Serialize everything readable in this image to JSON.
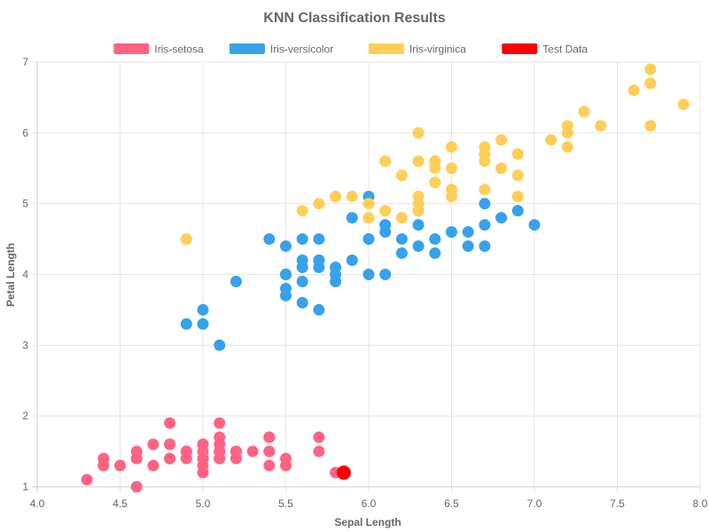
{
  "chart_data": {
    "type": "scatter",
    "title": "KNN Classification Results",
    "xlabel": "Sepal Length",
    "ylabel": "Petal Length",
    "xlim": [
      4.0,
      8.0
    ],
    "ylim": [
      1,
      7
    ],
    "xticks": [
      "4.0",
      "4.5",
      "5.0",
      "5.5",
      "6.0",
      "6.5",
      "7.0",
      "7.5",
      "8.0"
    ],
    "yticks": [
      "1",
      "2",
      "3",
      "4",
      "5",
      "6",
      "7"
    ],
    "grid": true,
    "legend_position": "top-center",
    "series": [
      {
        "name": "Iris-setosa",
        "color": "#ff6384",
        "points": [
          [
            5.1,
            1.4
          ],
          [
            4.9,
            1.4
          ],
          [
            4.7,
            1.3
          ],
          [
            4.6,
            1.5
          ],
          [
            5.0,
            1.4
          ],
          [
            5.4,
            1.7
          ],
          [
            4.6,
            1.4
          ],
          [
            5.0,
            1.5
          ],
          [
            4.4,
            1.4
          ],
          [
            4.9,
            1.5
          ],
          [
            5.4,
            1.5
          ],
          [
            4.8,
            1.6
          ],
          [
            4.8,
            1.4
          ],
          [
            4.3,
            1.1
          ],
          [
            5.8,
            1.2
          ],
          [
            5.7,
            1.5
          ],
          [
            5.4,
            1.3
          ],
          [
            5.1,
            1.4
          ],
          [
            5.7,
            1.7
          ],
          [
            5.1,
            1.5
          ],
          [
            5.4,
            1.7
          ],
          [
            5.1,
            1.5
          ],
          [
            4.6,
            1.0
          ],
          [
            5.1,
            1.7
          ],
          [
            4.8,
            1.9
          ],
          [
            5.0,
            1.6
          ],
          [
            5.0,
            1.6
          ],
          [
            5.2,
            1.5
          ],
          [
            5.2,
            1.4
          ],
          [
            4.7,
            1.6
          ],
          [
            4.8,
            1.6
          ],
          [
            5.4,
            1.5
          ],
          [
            5.2,
            1.5
          ],
          [
            5.5,
            1.4
          ],
          [
            4.9,
            1.5
          ],
          [
            5.0,
            1.2
          ],
          [
            5.5,
            1.3
          ],
          [
            4.9,
            1.5
          ],
          [
            4.4,
            1.3
          ],
          [
            5.1,
            1.5
          ],
          [
            5.0,
            1.3
          ],
          [
            4.5,
            1.3
          ],
          [
            4.4,
            1.3
          ],
          [
            5.0,
            1.6
          ],
          [
            5.1,
            1.9
          ],
          [
            4.8,
            1.4
          ],
          [
            5.1,
            1.6
          ],
          [
            4.6,
            1.4
          ],
          [
            5.3,
            1.5
          ],
          [
            5.0,
            1.4
          ]
        ]
      },
      {
        "name": "Iris-versicolor",
        "color": "#36a2eb",
        "points": [
          [
            7.0,
            4.7
          ],
          [
            6.4,
            4.5
          ],
          [
            6.9,
            4.9
          ],
          [
            5.5,
            4.0
          ],
          [
            6.5,
            4.6
          ],
          [
            5.7,
            4.5
          ],
          [
            6.3,
            4.7
          ],
          [
            4.9,
            3.3
          ],
          [
            6.6,
            4.6
          ],
          [
            5.2,
            3.9
          ],
          [
            5.0,
            3.5
          ],
          [
            5.9,
            4.2
          ],
          [
            6.0,
            4.0
          ],
          [
            6.1,
            4.7
          ],
          [
            5.6,
            3.6
          ],
          [
            6.7,
            4.4
          ],
          [
            5.6,
            4.5
          ],
          [
            5.8,
            4.1
          ],
          [
            6.2,
            4.5
          ],
          [
            5.6,
            3.9
          ],
          [
            5.9,
            4.8
          ],
          [
            6.1,
            4.0
          ],
          [
            6.3,
            4.9
          ],
          [
            6.1,
            4.7
          ],
          [
            6.4,
            4.3
          ],
          [
            6.6,
            4.4
          ],
          [
            6.8,
            4.8
          ],
          [
            6.7,
            5.0
          ],
          [
            6.0,
            4.5
          ],
          [
            5.7,
            3.5
          ],
          [
            5.5,
            3.8
          ],
          [
            5.5,
            3.7
          ],
          [
            5.8,
            3.9
          ],
          [
            6.0,
            5.1
          ],
          [
            5.4,
            4.5
          ],
          [
            6.0,
            4.5
          ],
          [
            6.7,
            4.7
          ],
          [
            6.3,
            4.4
          ],
          [
            5.6,
            4.1
          ],
          [
            5.5,
            4.0
          ],
          [
            5.5,
            4.4
          ],
          [
            6.1,
            4.6
          ],
          [
            5.8,
            4.0
          ],
          [
            5.0,
            3.3
          ],
          [
            5.6,
            4.2
          ],
          [
            5.7,
            4.2
          ],
          [
            5.7,
            4.2
          ],
          [
            6.2,
            4.3
          ],
          [
            5.1,
            3.0
          ],
          [
            5.7,
            4.1
          ]
        ]
      },
      {
        "name": "Iris-virginica",
        "color": "#ffce56",
        "points": [
          [
            6.3,
            6.0
          ],
          [
            5.8,
            5.1
          ],
          [
            7.1,
            5.9
          ],
          [
            6.3,
            5.6
          ],
          [
            6.5,
            5.8
          ],
          [
            7.6,
            6.6
          ],
          [
            4.9,
            4.5
          ],
          [
            7.3,
            6.3
          ],
          [
            6.7,
            5.8
          ],
          [
            7.2,
            6.1
          ],
          [
            6.5,
            5.1
          ],
          [
            6.4,
            5.3
          ],
          [
            6.8,
            5.5
          ],
          [
            5.7,
            5.0
          ],
          [
            5.8,
            5.1
          ],
          [
            6.4,
            5.3
          ],
          [
            6.5,
            5.5
          ],
          [
            7.7,
            6.7
          ],
          [
            7.7,
            6.9
          ],
          [
            6.0,
            5.0
          ],
          [
            6.9,
            5.7
          ],
          [
            5.6,
            4.9
          ],
          [
            7.7,
            6.7
          ],
          [
            6.3,
            4.9
          ],
          [
            6.7,
            5.7
          ],
          [
            7.2,
            6.0
          ],
          [
            6.2,
            4.8
          ],
          [
            6.1,
            4.9
          ],
          [
            6.4,
            5.6
          ],
          [
            7.2,
            5.8
          ],
          [
            7.4,
            6.1
          ],
          [
            7.9,
            6.4
          ],
          [
            6.4,
            5.6
          ],
          [
            6.3,
            5.1
          ],
          [
            6.1,
            5.6
          ],
          [
            7.7,
            6.1
          ],
          [
            6.3,
            5.6
          ],
          [
            6.4,
            5.5
          ],
          [
            6.0,
            4.8
          ],
          [
            6.9,
            5.4
          ],
          [
            6.7,
            5.6
          ],
          [
            6.9,
            5.1
          ],
          [
            5.8,
            5.1
          ],
          [
            6.8,
            5.9
          ],
          [
            6.7,
            5.7
          ],
          [
            6.7,
            5.2
          ],
          [
            6.3,
            5.0
          ],
          [
            6.5,
            5.2
          ],
          [
            6.2,
            5.4
          ],
          [
            5.9,
            5.1
          ]
        ]
      },
      {
        "name": "Test Data",
        "color": "#ff0000",
        "points": [
          [
            5.85,
            1.2
          ]
        ]
      }
    ]
  }
}
